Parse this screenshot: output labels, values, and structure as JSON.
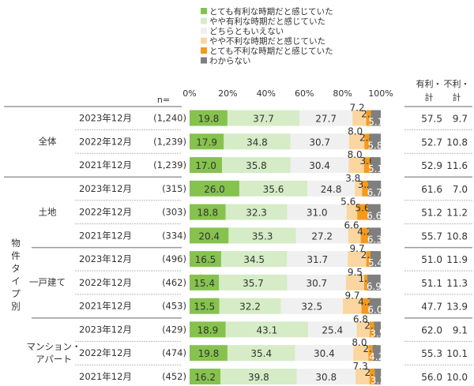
{
  "chart_data": {
    "type": "bar",
    "orientation": "horizontal",
    "stacked": true,
    "xlim": [
      0,
      100
    ],
    "x_ticks": [
      "0%",
      "20%",
      "40%",
      "60%",
      "80%",
      "100%"
    ],
    "n_label": "n=",
    "legend": [
      {
        "name": "とても有利な時期だと感じていた",
        "color": "#86c24e"
      },
      {
        "name": "やや有利な時期だと感じていた",
        "color": "#d5ecc6"
      },
      {
        "name": "どちらともいえない",
        "color": "#f0f0f0"
      },
      {
        "name": "やや不利な時期だと感じていた",
        "color": "#fbd6a0"
      },
      {
        "name": "とても不利な時期だと感じていた",
        "color": "#f39a1e"
      },
      {
        "name": "わからない",
        "color": "#7f7f7f"
      }
    ],
    "col_headers": [
      [
        "有利・",
        "計"
      ],
      [
        "不利・",
        "計"
      ]
    ],
    "side_label": "物件タイプ別",
    "groups": [
      {
        "name": "全体",
        "rows": [
          {
            "label": "2023年12月",
            "n": "(1,240)",
            "values": [
              19.8,
              37.7,
              27.7,
              7.2,
              2.5,
              5.1
            ],
            "favorable": "57.5",
            "unfavorable": "9.7"
          },
          {
            "label": "2022年12月",
            "n": "(1,239)",
            "values": [
              17.9,
              34.8,
              30.7,
              8.0,
              2.8,
              5.8
            ],
            "favorable": "52.7",
            "unfavorable": "10.8"
          },
          {
            "label": "2021年12月",
            "n": "(1,239)",
            "values": [
              17.0,
              35.8,
              30.4,
              8.0,
              3.6,
              5.1
            ],
            "favorable": "52.9",
            "unfavorable": "11.6"
          }
        ]
      },
      {
        "name": "土地",
        "rows": [
          {
            "label": "2023年12月",
            "n": "(315)",
            "values": [
              26.0,
              35.6,
              24.8,
              3.8,
              3.2,
              6.7
            ],
            "favorable": "61.6",
            "unfavorable": "7.0"
          },
          {
            "label": "2022年12月",
            "n": "(303)",
            "values": [
              18.8,
              32.3,
              31.0,
              5.6,
              5.6,
              6.6
            ],
            "favorable": "51.2",
            "unfavorable": "11.2"
          },
          {
            "label": "2021年12月",
            "n": "(334)",
            "values": [
              20.4,
              35.3,
              27.2,
              6.6,
              4.2,
              6.3
            ],
            "favorable": "55.7",
            "unfavorable": "10.8"
          }
        ]
      },
      {
        "name": "一戸建て",
        "rows": [
          {
            "label": "2023年12月",
            "n": "(496)",
            "values": [
              16.5,
              34.5,
              31.7,
              9.7,
              2.2,
              5.4
            ],
            "favorable": "51.0",
            "unfavorable": "11.9"
          },
          {
            "label": "2022年12月",
            "n": "(462)",
            "values": [
              15.4,
              35.7,
              30.7,
              9.5,
              1.7,
              6.9
            ],
            "favorable": "51.1",
            "unfavorable": "11.3"
          },
          {
            "label": "2021年12月",
            "n": "(453)",
            "values": [
              15.5,
              32.2,
              32.5,
              9.7,
              4.2,
              6.0
            ],
            "favorable": "47.7",
            "unfavorable": "13.9"
          }
        ]
      },
      {
        "name": "マンション・\nアパート",
        "rows": [
          {
            "label": "2023年12月",
            "n": "(429)",
            "values": [
              18.9,
              43.1,
              25.4,
              6.8,
              2.3,
              3.5
            ],
            "favorable": "62.0",
            "unfavorable": "9.1"
          },
          {
            "label": "2022年12月",
            "n": "(474)",
            "values": [
              19.8,
              35.4,
              30.4,
              8.0,
              2.1,
              4.2
            ],
            "favorable": "55.3",
            "unfavorable": "10.1"
          },
          {
            "label": "2021年12月",
            "n": "(452)",
            "values": [
              16.2,
              39.8,
              30.8,
              7.3,
              2.7,
              3.3
            ],
            "favorable": "56.0",
            "unfavorable": "10.0"
          }
        ]
      }
    ]
  }
}
